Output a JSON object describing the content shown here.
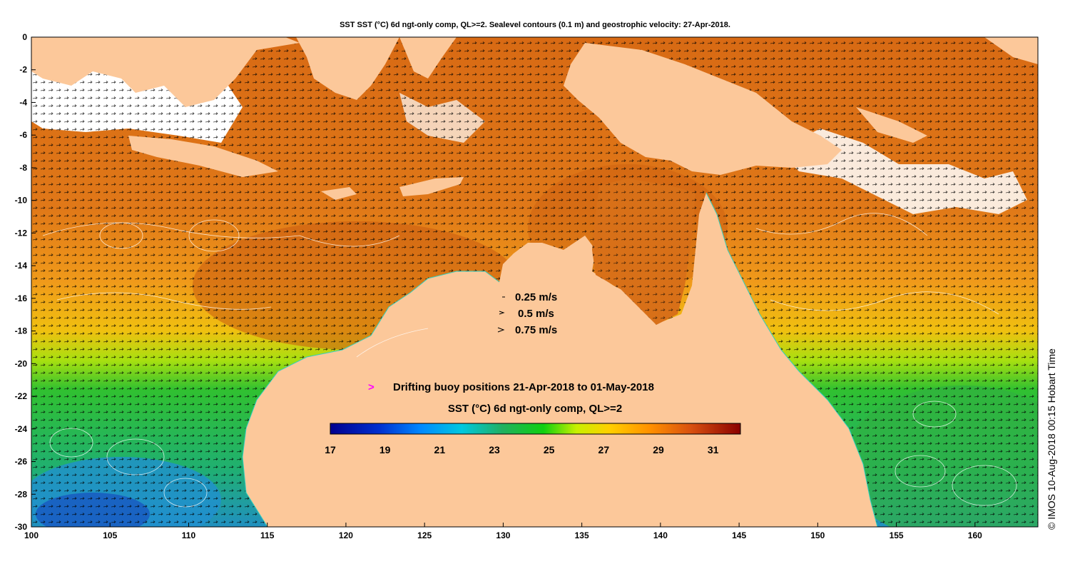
{
  "title": "SST SST (°C) 6d ngt-only comp, QL>=2. Sealevel contours (0.1 m) and geostrophic velocity: 27-Apr-2018.",
  "credit": "© IMOS 10-Aug-2018 00:15 Hobart Time",
  "x_axis": {
    "min": 100,
    "max": 164,
    "ticks": [
      100,
      105,
      110,
      115,
      120,
      125,
      130,
      135,
      140,
      145,
      150,
      155,
      160
    ]
  },
  "y_axis": {
    "min": -30,
    "max": 0,
    "ticks": [
      0,
      -2,
      -4,
      -6,
      -8,
      -10,
      -12,
      -14,
      -16,
      -18,
      -20,
      -22,
      -24,
      -26,
      -28,
      -30
    ]
  },
  "velocity_legend": [
    "0.25 m/s",
    "0.5 m/s",
    "0.75 m/s"
  ],
  "buoy_marker": ">",
  "buoy_text": "Drifting buoy positions 21-Apr-2018 to 01-May-2018",
  "colorbar": {
    "label": "SST (°C) 6d ngt-only comp, QL>=2",
    "min": 17,
    "max": 32,
    "ticks": [
      17,
      19,
      21,
      23,
      25,
      27,
      29,
      31
    ],
    "colors": [
      "#00008f",
      "#0040ff",
      "#00c8e0",
      "#20b040",
      "#10d010",
      "#f0f000",
      "#ffb000",
      "#ff8000",
      "#d05000",
      "#8a0000"
    ]
  },
  "colors": {
    "land": "#fcc89a",
    "warm": "#e08020",
    "hot": "#c85a10",
    "ocean_mid": "#f0a020",
    "cool": "#30c040",
    "cold": "#20a0d0",
    "current_text": "#ff00ff",
    "coast": "#30d0c0"
  }
}
